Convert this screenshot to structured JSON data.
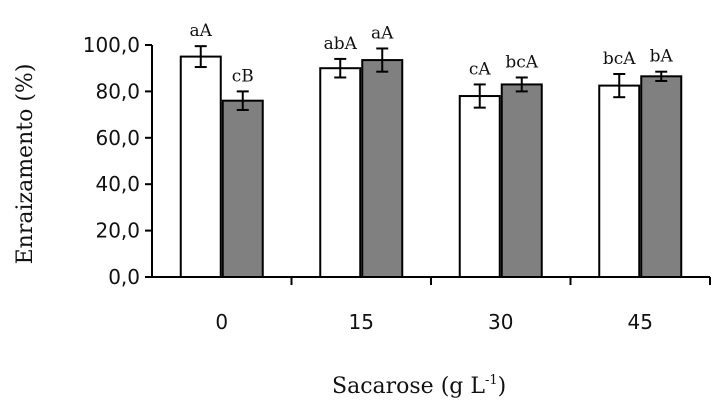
{
  "chart_data": {
    "type": "bar",
    "xlabel": "Sacarose (g L",
    "xlabel_sup": "-1",
    "xlabel_close": ")",
    "ylabel": "Enraizamento (%)",
    "ylim": [
      0,
      100
    ],
    "yticks": [
      "0,0",
      "20,0",
      "40,0",
      "60,0",
      "80,0",
      "100,0"
    ],
    "categories": [
      "0",
      "15",
      "30",
      "45"
    ],
    "colors": {
      "series1": "#ffffff",
      "series2": "#808080",
      "stroke": "#000000"
    },
    "series": [
      {
        "values": [
          95,
          90,
          78,
          82.5
        ],
        "errors": [
          4.5,
          4,
          5,
          5
        ],
        "annotations": [
          "aA",
          "abA",
          "cA",
          "bcA"
        ]
      },
      {
        "values": [
          76,
          93.5,
          83,
          86.5
        ],
        "errors": [
          4,
          5,
          3,
          2
        ],
        "annotations": [
          "cB",
          "aA",
          "bcA",
          "bA"
        ]
      }
    ]
  }
}
